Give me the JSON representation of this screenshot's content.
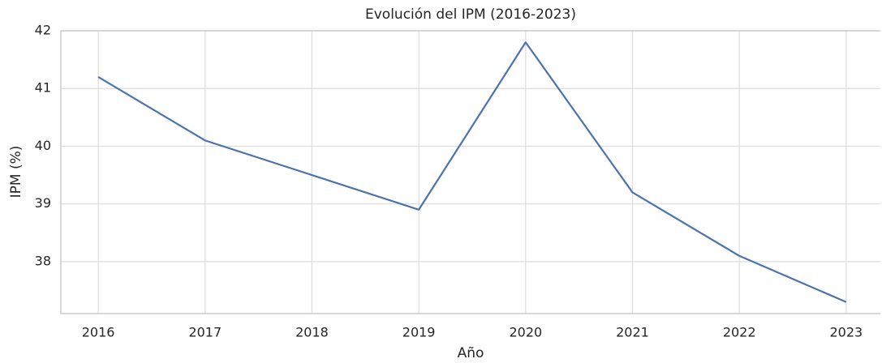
{
  "chart_data": {
    "type": "line",
    "title": "Evolución del IPM (2016-2023)",
    "x_label": "Año",
    "y_label": "IPM (%)",
    "x": [
      2016,
      2017,
      2018,
      2019,
      2020,
      2021,
      2022,
      2023
    ],
    "series": [
      {
        "name": "IPM",
        "color": "#4c72b0",
        "values": [
          41.2,
          40.1,
          39.5,
          38.9,
          41.8,
          39.2,
          38.1,
          37.3
        ]
      }
    ],
    "xlim": [
      2015.65,
      2023.32
    ],
    "xticks": [
      2016,
      2017,
      2018,
      2019,
      2020,
      2021,
      2022,
      2023
    ],
    "ylim": [
      37.1,
      42
    ],
    "yticks": [
      38,
      39,
      40,
      41,
      42
    ],
    "grid": true
  }
}
